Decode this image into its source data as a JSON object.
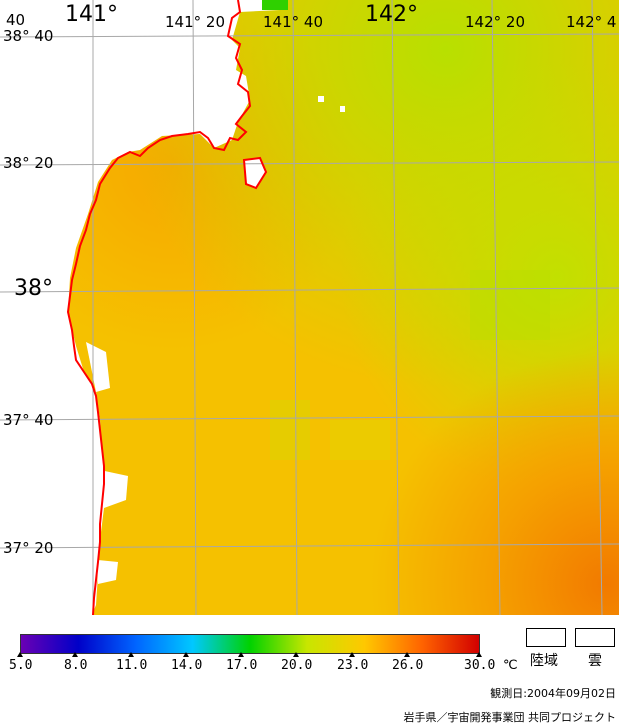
{
  "map": {
    "longitude_labels": [
      {
        "text": "141°",
        "size": "big"
      },
      {
        "text": "141° 20",
        "size": "small"
      },
      {
        "text": "141° 40",
        "size": "small"
      },
      {
        "text": "142°",
        "size": "big"
      },
      {
        "text": "142° 20",
        "size": "small"
      },
      {
        "text": "142° 4",
        "size": "small"
      }
    ],
    "latitude_labels": [
      {
        "text": "40",
        "size": "small"
      },
      {
        "text": "38° 40",
        "size": "small"
      },
      {
        "text": "38° 20",
        "size": "small"
      },
      {
        "text": "38°",
        "size": "big"
      },
      {
        "text": "37° 40",
        "size": "small"
      },
      {
        "text": "37° 20",
        "size": "small"
      }
    ],
    "colors": {
      "land": "#ffffff",
      "coastline": "#ff0000",
      "graticule": "#a8a8a8"
    }
  },
  "colorbar": {
    "ticks": [
      "5.0",
      "8.0",
      "11.0",
      "14.0",
      "17.0",
      "20.0",
      "23.0",
      "26.0",
      "30.0"
    ],
    "unit": "℃",
    "stops": [
      "#6a00b4",
      "#0000c8",
      "#0064ff",
      "#00c8ff",
      "#00d200",
      "#c8e600",
      "#ffc800",
      "#ff6400",
      "#d20000"
    ]
  },
  "legend": {
    "land_label": "陸域",
    "cloud_label": "雲"
  },
  "footer": {
    "observation_date": "観測日:2004年09月02日",
    "credit": "岩手県／宇宙開発事業団 共同プロジェクト"
  }
}
